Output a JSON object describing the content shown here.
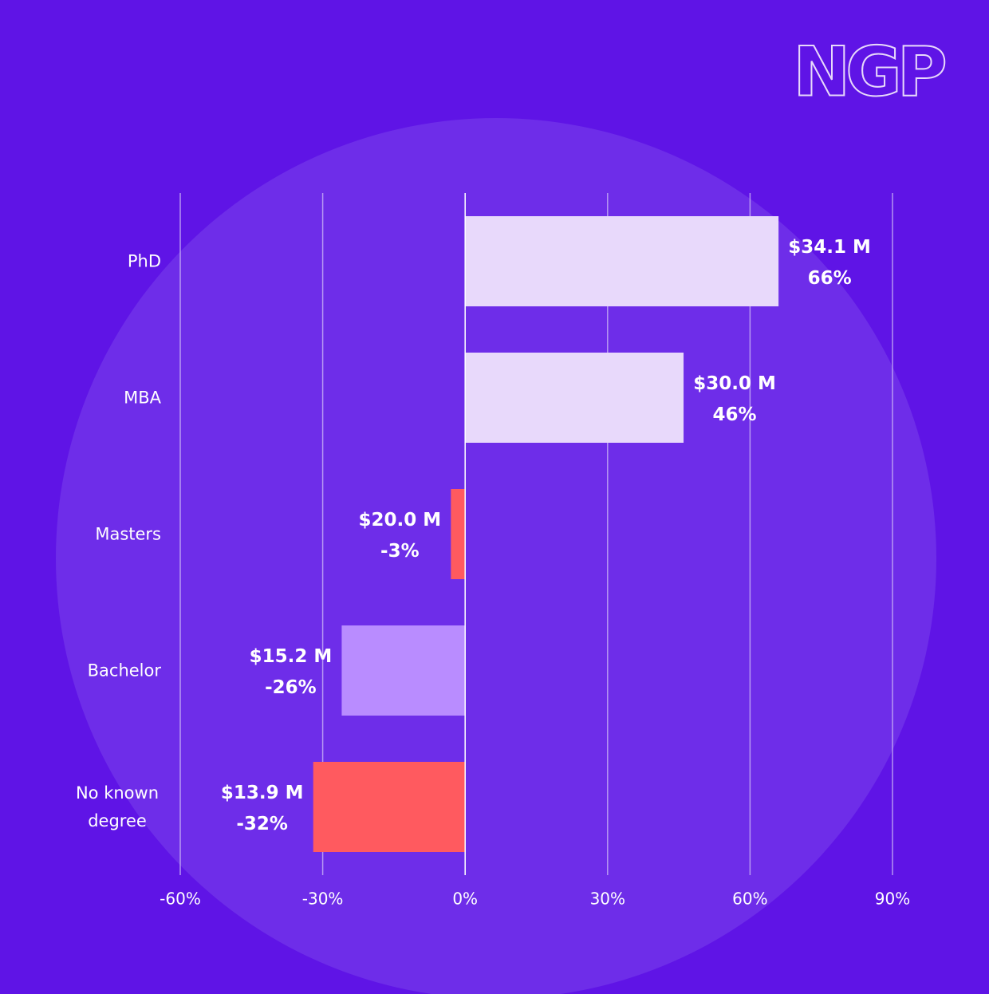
{
  "logo": "NGP",
  "chart_data": {
    "type": "hbar",
    "categories": [
      "PhD",
      "MBA",
      "Masters",
      "Bachelor",
      "No known degree"
    ],
    "values": [
      66,
      46,
      -3,
      -26,
      -32
    ],
    "value_labels": [
      "66%",
      "46%",
      "-3%",
      "-26%",
      "-32%"
    ],
    "amounts": [
      "$34.1 M",
      "$30.0 M",
      "$20.0 M",
      "$15.2 M",
      "$13.9 M"
    ],
    "colors": [
      "#e8d9fb",
      "#e8d9fb",
      "#ff5a5f",
      "#b98cff",
      "#ff5a5f"
    ],
    "xlim": [
      -60,
      90
    ],
    "xticks": [
      {
        "value": -60,
        "label": "-60%"
      },
      {
        "value": -30,
        "label": "-30%"
      },
      {
        "value": 0,
        "label": "0%"
      },
      {
        "value": 30,
        "label": "30%"
      },
      {
        "value": 60,
        "label": "60%"
      },
      {
        "value": 90,
        "label": "90%"
      }
    ],
    "grid": true
  }
}
